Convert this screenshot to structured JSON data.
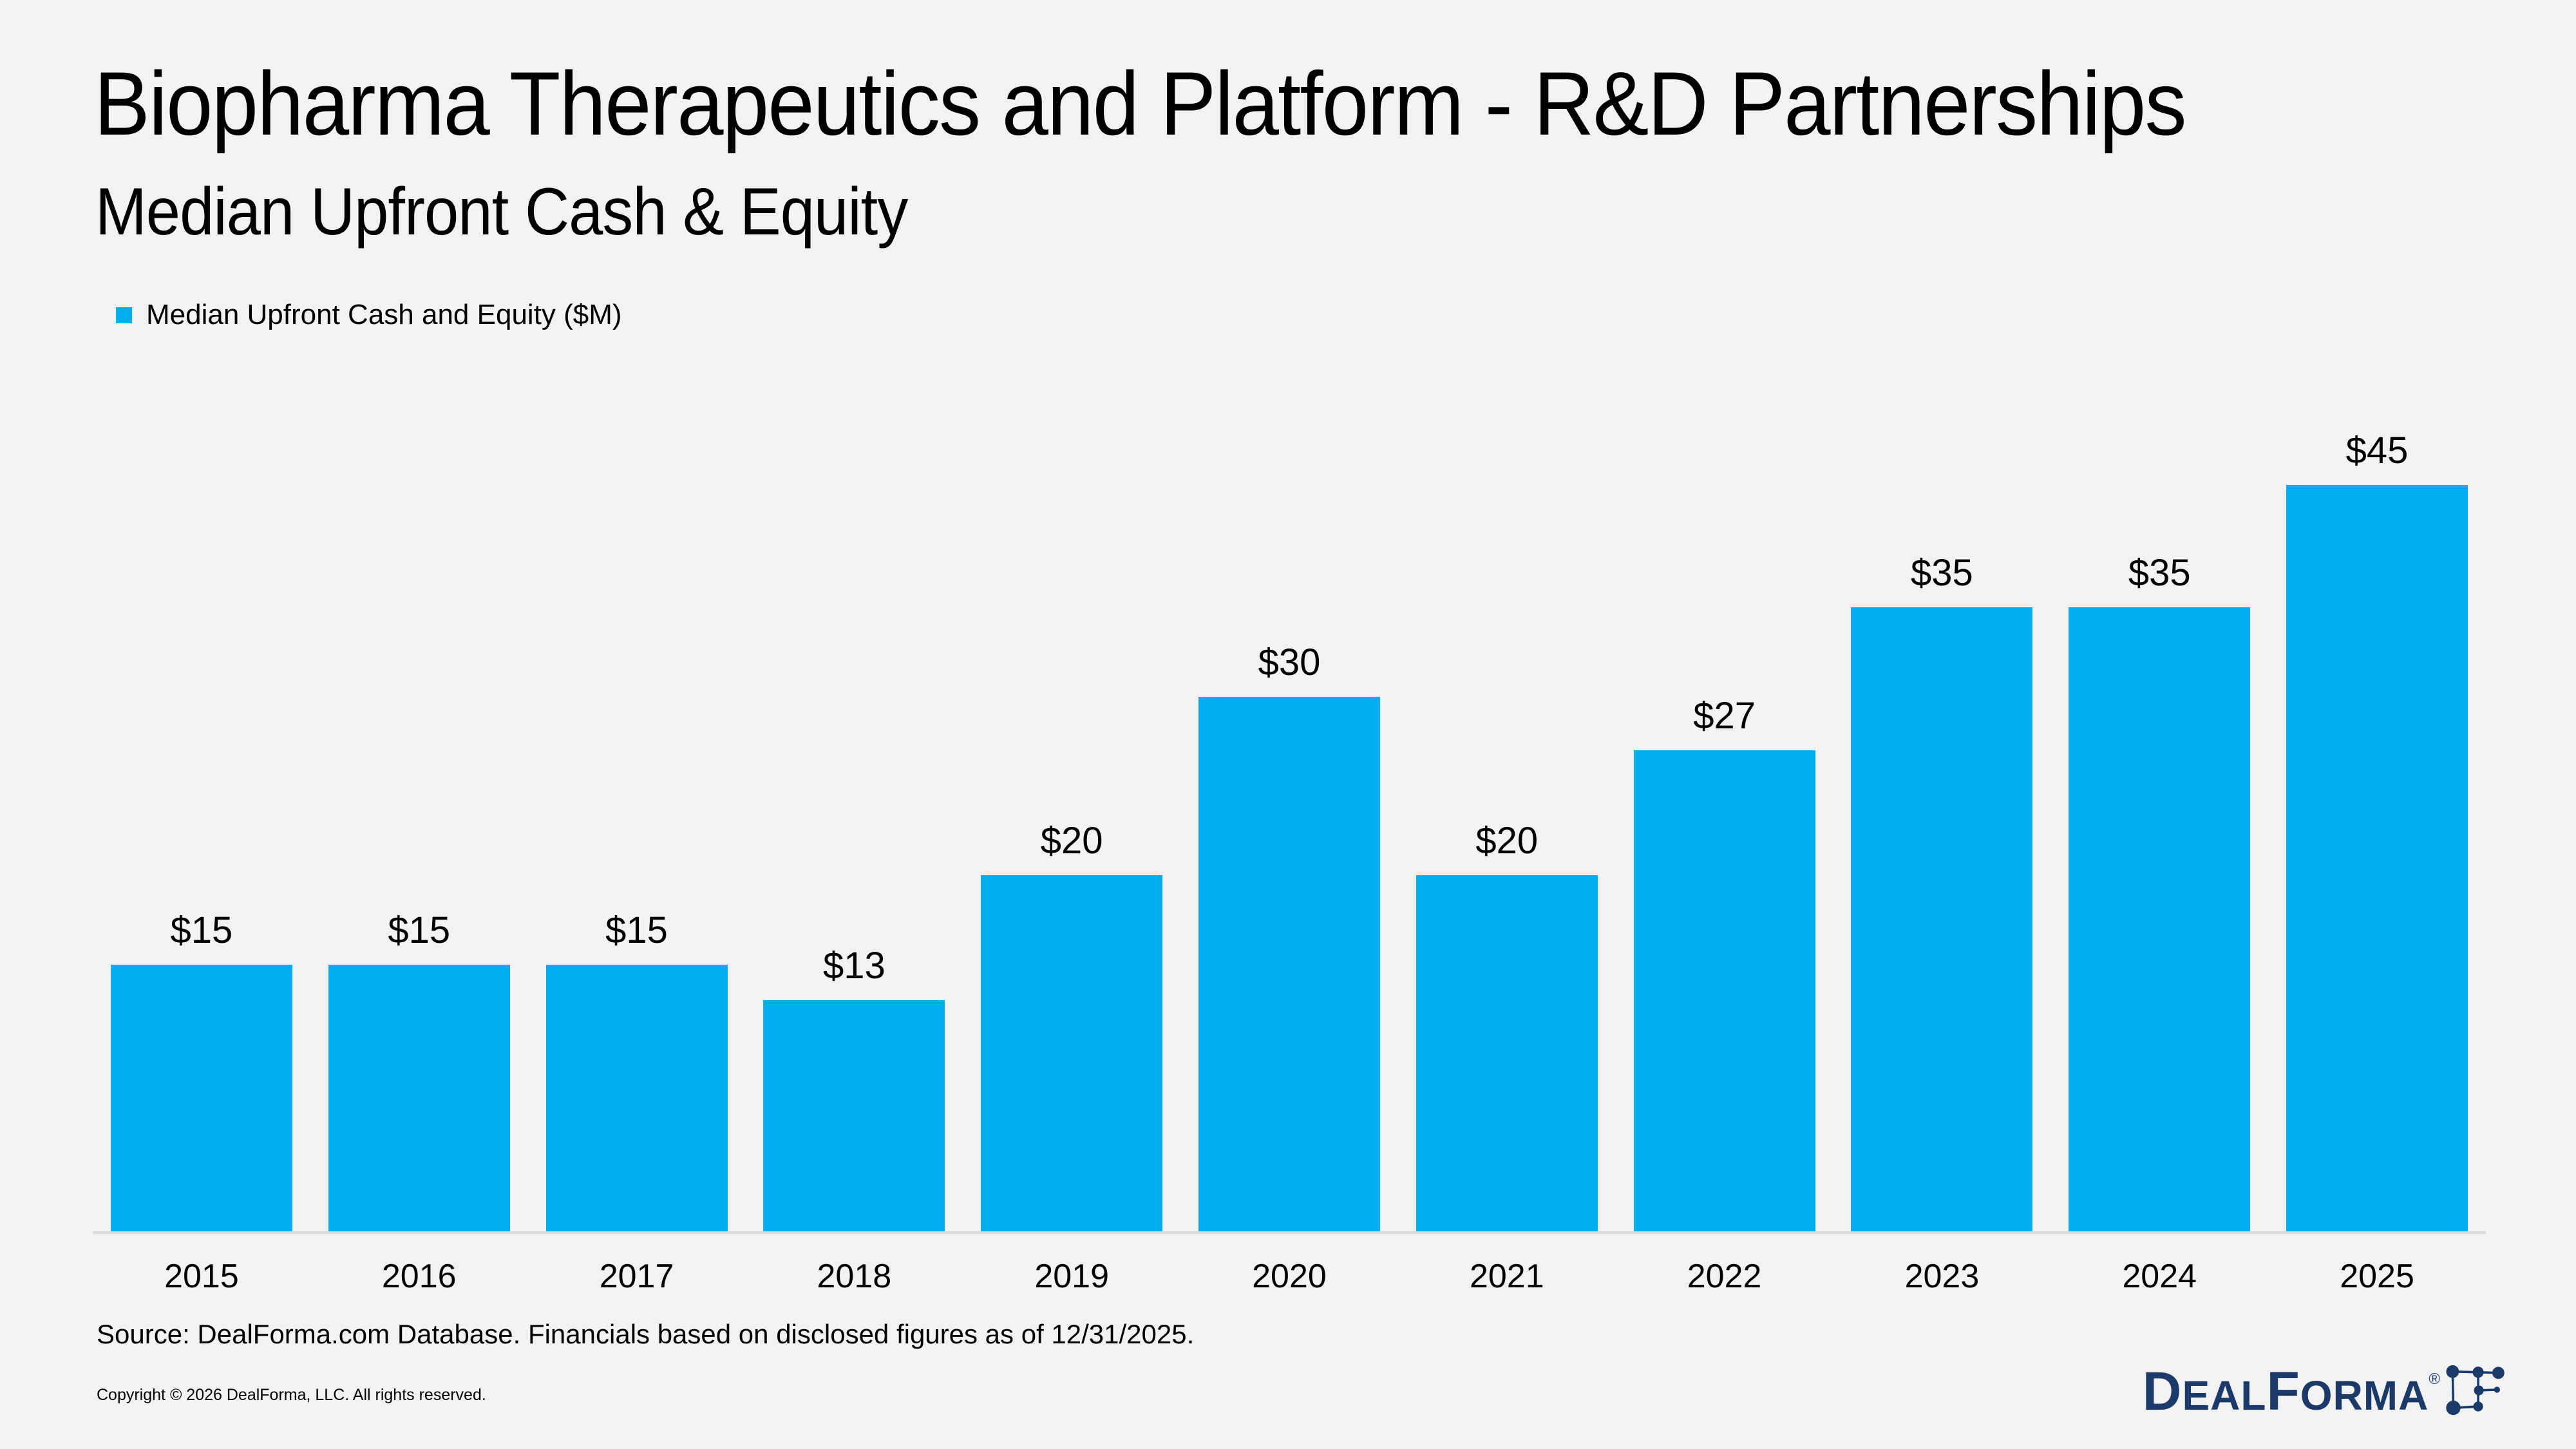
{
  "header": {
    "title": "Biopharma Therapeutics and Platform - R&D Partnerships",
    "subtitle": "Median Upfront Cash & Equity"
  },
  "legend": {
    "label": "Median Upfront Cash and Equity ($M)"
  },
  "chart_data": {
    "type": "bar",
    "title": "Biopharma Therapeutics and Platform - R&D Partnerships",
    "subtitle": "Median Upfront Cash & Equity",
    "series_name": "Median Upfront Cash and Equity ($M)",
    "categories": [
      "2015",
      "2016",
      "2017",
      "2018",
      "2019",
      "2020",
      "2021",
      "2022",
      "2023",
      "2024",
      "2025"
    ],
    "values": [
      15,
      15,
      15,
      13,
      20,
      30,
      20,
      27,
      35,
      35,
      45
    ],
    "data_labels": [
      "$15",
      "$15",
      "$15",
      "$13",
      "$20",
      "$30",
      "$20",
      "$27",
      "$35",
      "$35",
      "$45"
    ],
    "xlabel": "",
    "ylabel": "",
    "ylim": [
      0,
      45
    ],
    "grid": false,
    "y_axis_visible": false,
    "legend_position": "top-left",
    "bar_color": "#00AEEF"
  },
  "footer": {
    "source": "Source: DealForma.com Database. Financials based on disclosed figures as of 12/31/2025.",
    "copyright": "Copyright © 2026 DealForma, LLC. All rights reserved."
  },
  "logo": {
    "d": "D",
    "eal": "EAL",
    "f": "F",
    "orma": "ORMA",
    "reg": "®"
  },
  "colors": {
    "background": "#F2F2F2",
    "bar": "#00AEEF",
    "axis_line": "#D9D9D9",
    "text": "#000000",
    "logo_navy": "#1B3A69"
  }
}
